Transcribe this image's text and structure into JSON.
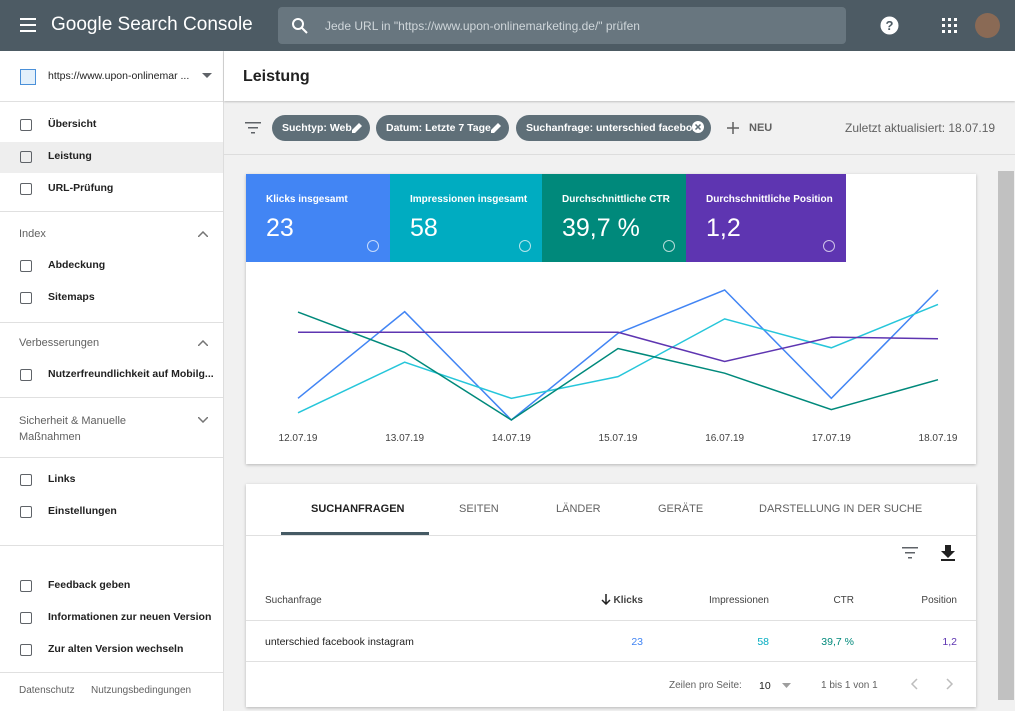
{
  "header": {
    "product": "Google Search Console",
    "search_placeholder": "Jede URL in \"https://www.upon-onlinemarketing.de/\" prüfen"
  },
  "sidebar": {
    "property": "https://www.upon-onlinemar ...",
    "nav": [
      "Übersicht",
      "Leistung",
      "URL-Prüfung"
    ],
    "index_title": "Index",
    "index_items": [
      "Abdeckung",
      "Sitemaps"
    ],
    "improvements_title": "Verbesserungen",
    "improvements_items": [
      "Nutzerfreundlichkeit auf Mobilg..."
    ],
    "security_title": "Sicherheit & Manuelle Maßnahmen",
    "other_items": [
      "Links",
      "Einstellungen"
    ],
    "bottom_items": [
      "Feedback geben",
      "Informationen zur neuen Version",
      "Zur alten Version wechseln"
    ],
    "footer": [
      "Datenschutz",
      "Nutzungsbedingungen"
    ]
  },
  "page": {
    "title": "Leistung",
    "filters": [
      "Suchtyp: Web",
      "Datum: Letzte 7 Tage",
      "Suchanfrage: unterschied facebo..."
    ],
    "new_button": "NEU",
    "updated": "Zuletzt aktualisiert: 18.07.19"
  },
  "metrics": [
    {
      "label": "Klicks insgesamt",
      "value": "23",
      "color": "#4285f4"
    },
    {
      "label": "Impressionen insgesamt",
      "value": "58",
      "color": "#00acc1"
    },
    {
      "label": "Durchschnittliche CTR",
      "value": "39,7 %",
      "color": "#00897b"
    },
    {
      "label": "Durchschnittliche Position",
      "value": "1,2",
      "color": "#5e35b1"
    }
  ],
  "chart_data": {
    "type": "line",
    "categories": [
      "12.07.19",
      "13.07.19",
      "14.07.19",
      "15.07.19",
      "16.07.19",
      "17.07.19",
      "18.07.19"
    ],
    "series": [
      {
        "color": "#4285f4",
        "values": [
          1,
          5,
          0,
          4,
          6,
          1,
          6
        ],
        "ylim": [
          0,
          6
        ]
      },
      {
        "color": "#26c6da",
        "values": [
          1,
          8,
          3,
          6,
          14,
          10,
          16
        ],
        "ylim": [
          0,
          18
        ]
      },
      {
        "color": "#00897b",
        "values": [
          83,
          52,
          0,
          55,
          36,
          8,
          31
        ],
        "ylim": [
          0,
          100
        ]
      },
      {
        "color": "#5e35b1",
        "values": [
          1.3,
          1.3,
          1.3,
          1.3,
          2.2,
          1.45,
          1.5
        ],
        "ylim": [
          4,
          0
        ]
      }
    ]
  },
  "tabs": [
    "SUCHANFRAGEN",
    "SEITEN",
    "LÄNDER",
    "GERÄTE",
    "DARSTELLUNG IN DER SUCHE"
  ],
  "table": {
    "headers": [
      "Suchanfrage",
      "Klicks",
      "Impressionen",
      "CTR",
      "Position"
    ],
    "rows": [
      [
        "unterschied facebook instagram",
        "23",
        "58",
        "39,7 %",
        "1,2"
      ]
    ]
  },
  "pagination": {
    "rows_label": "Zeilen pro Seite:",
    "rows_value": "10",
    "range": "1 bis 1 von 1"
  }
}
